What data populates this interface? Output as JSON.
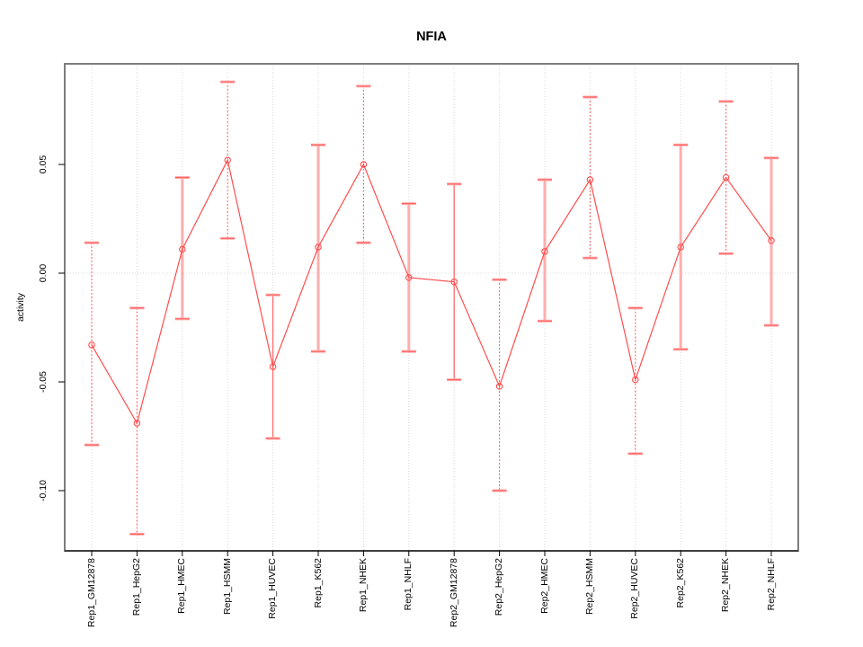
{
  "title": "NFIA",
  "chart_data": {
    "type": "line",
    "title": "NFIA",
    "xlabel": "",
    "ylabel": "activity",
    "legend": "none",
    "grid": {
      "vertical_dotted_per_category": true,
      "zero_line_dotted": true
    },
    "marker": "open-circle",
    "categories": [
      "Rep1_GM12878",
      "Rep1_HepG2",
      "Rep1_HMEC",
      "Rep1_HSMM",
      "Rep1_HUVEC",
      "Rep1_K562",
      "Rep1_NHEK",
      "Rep1_NHLF",
      "Rep2_GM12878",
      "Rep2_HepG2",
      "Rep2_HMEC",
      "Rep2_HSMM",
      "Rep2_HUVEC",
      "Rep2_K562",
      "Rep2_NHEK",
      "Rep2_NHLF"
    ],
    "series": [
      {
        "name": "activity",
        "values": [
          -0.033,
          -0.069,
          0.011,
          0.052,
          -0.043,
          0.012,
          0.05,
          -0.002,
          -0.004,
          -0.052,
          0.01,
          0.043,
          -0.049,
          0.012,
          0.044,
          0.015
        ],
        "lower": [
          -0.079,
          -0.12,
          -0.021,
          0.016,
          -0.076,
          -0.036,
          0.014,
          -0.036,
          -0.049,
          -0.1,
          -0.022,
          0.007,
          -0.083,
          -0.035,
          0.009,
          -0.024
        ],
        "upper": [
          0.014,
          -0.016,
          0.044,
          0.088,
          -0.01,
          0.059,
          0.086,
          0.032,
          0.041,
          -0.003,
          0.043,
          0.081,
          -0.016,
          0.059,
          0.079,
          0.053
        ]
      }
    ],
    "bar_styles": [
      "dotted",
      "dotted",
      "pink",
      "dotted",
      "solid",
      "pink",
      "dotted",
      "pink",
      "solid",
      "dotted",
      "pink",
      "dotted",
      "dotted",
      "pink",
      "dotted",
      "pink"
    ],
    "yticks": [
      -0.1,
      -0.05,
      0.0,
      0.05
    ],
    "ytick_labels": [
      "-0.10",
      "-0.05",
      "0.00",
      "0.05"
    ],
    "ylim": [
      -0.1277,
      0.0963
    ],
    "colors": {
      "series_line": "#ff4d4d",
      "marker": "#ff4d4d",
      "errorbar_pink": "#ffadad",
      "errorbar_dotted": "#ff4d4d",
      "errorbar_solid": "#ff6b6b",
      "cap_pink": "#ffadad",
      "cap_red": "#ff6060",
      "grid": "#d9d9d9",
      "frame": "#7d7d7d",
      "axis": "#000000"
    }
  }
}
